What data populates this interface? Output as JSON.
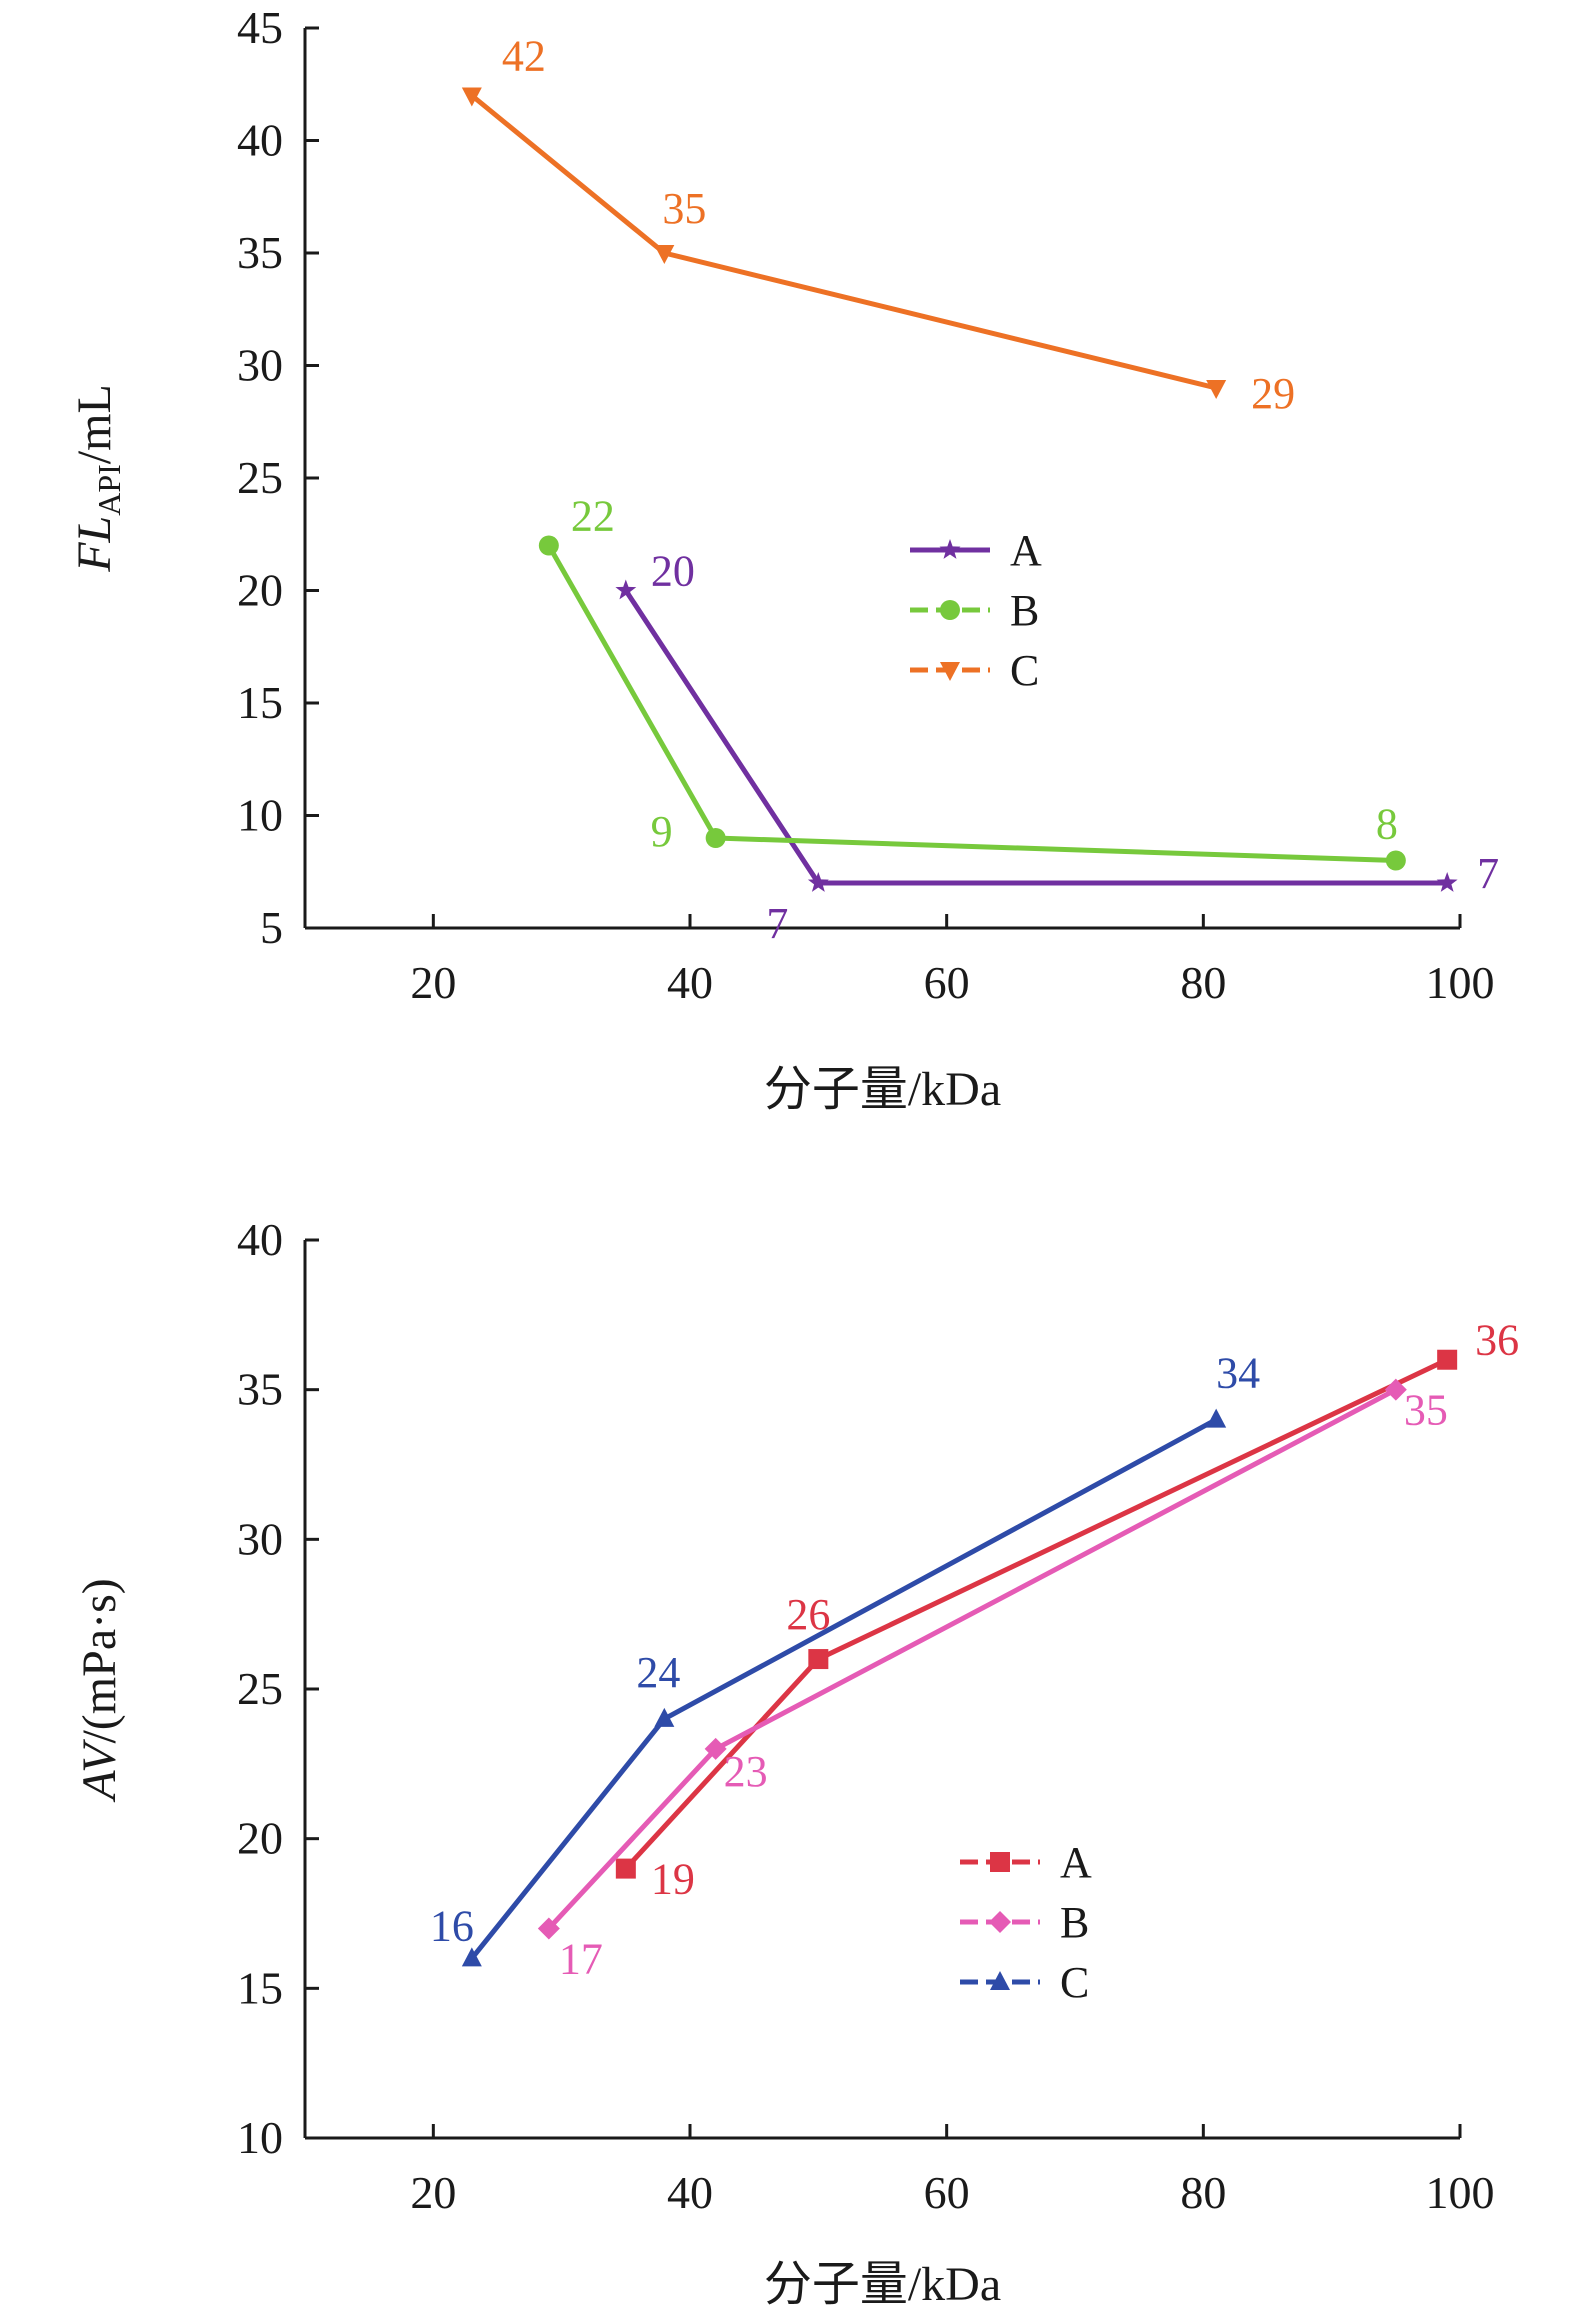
{
  "chart_data": [
    {
      "type": "line",
      "xlabel": "分子量/kDa",
      "ylabel": "FL",
      "ylabel_subscript": "API",
      "ylabel_suffix": "/mL",
      "xlim": [
        10,
        100
      ],
      "ylim": [
        5,
        45
      ],
      "xticks": [
        20,
        40,
        60,
        80,
        100
      ],
      "yticks": [
        5,
        10,
        15,
        20,
        25,
        30,
        35,
        40,
        45
      ],
      "grid": false,
      "legend_position": "center-right",
      "series": [
        {
          "name": "A",
          "color": "#7030A0",
          "marker": "star",
          "line_style": "solid",
          "x": [
            35,
            50,
            99
          ],
          "y": [
            20,
            7,
            7
          ],
          "labels": [
            "20",
            "7",
            "7"
          ]
        },
        {
          "name": "B",
          "color": "#77C93C",
          "marker": "circle",
          "line_style": "solid",
          "x": [
            29,
            42,
            95
          ],
          "y": [
            22,
            9,
            8
          ],
          "labels": [
            "22",
            "9",
            "8"
          ]
        },
        {
          "name": "C",
          "color": "#ED7125",
          "marker": "triangle-down",
          "line_style": "solid",
          "x": [
            23,
            38,
            81
          ],
          "y": [
            42,
            35,
            29
          ],
          "labels": [
            "42",
            "35",
            "29"
          ]
        }
      ]
    },
    {
      "type": "line",
      "xlabel": "分子量/kDa",
      "ylabel": "AV/(mPa·s)",
      "ylabel_italic_part": "AV",
      "ylabel_rest": "/(mPa·s)",
      "xlim": [
        10,
        100
      ],
      "ylim": [
        10,
        40
      ],
      "xticks": [
        20,
        40,
        60,
        80,
        100
      ],
      "yticks": [
        10,
        15,
        20,
        25,
        30,
        35,
        40
      ],
      "grid": false,
      "legend_position": "bottom-right",
      "series": [
        {
          "name": "A",
          "color": "#DC3545",
          "marker": "square",
          "line_style": "solid",
          "x": [
            35,
            50,
            99
          ],
          "y": [
            19,
            26,
            36
          ],
          "labels": [
            "19",
            "26",
            "36"
          ]
        },
        {
          "name": "B",
          "color": "#E55BB5",
          "marker": "diamond",
          "line_style": "solid",
          "x": [
            29,
            42,
            95
          ],
          "y": [
            17,
            23,
            35
          ],
          "labels": [
            "17",
            "23",
            "35"
          ]
        },
        {
          "name": "C",
          "color": "#2E4BA8",
          "marker": "triangle-up",
          "line_style": "solid",
          "x": [
            23,
            38,
            81
          ],
          "y": [
            16,
            24,
            34
          ],
          "labels": [
            "16",
            "24",
            "34"
          ]
        }
      ]
    }
  ]
}
